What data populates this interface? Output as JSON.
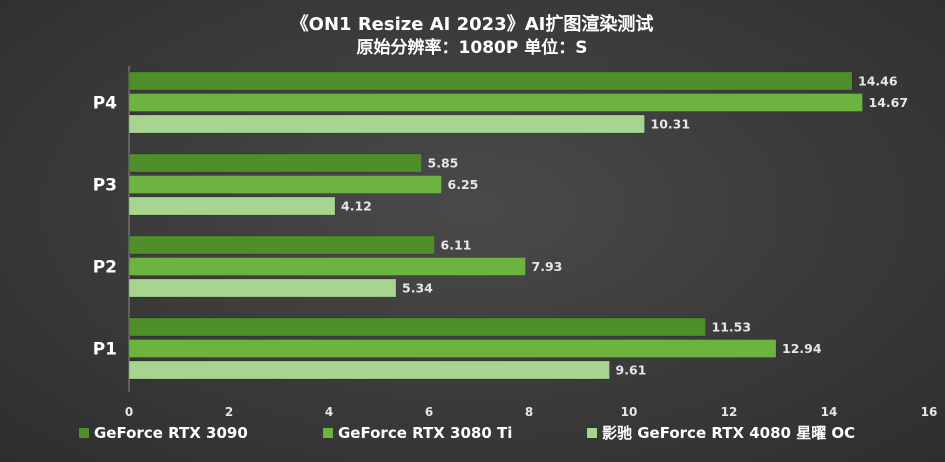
{
  "chart_data": {
    "type": "bar",
    "orientation": "horizontal",
    "title": "《ON1 Resize AI 2023》AI扩图渲染测试",
    "subtitle": "原始分辨率：1080P 单位：S",
    "categories": [
      "P4",
      "P3",
      "P2",
      "P1"
    ],
    "series": [
      {
        "name": "GeForce RTX 3090",
        "color": "#4e8f2c",
        "values": [
          14.46,
          5.85,
          6.11,
          11.53
        ]
      },
      {
        "name": "GeForce RTX 3080 Ti",
        "color": "#6cb33f",
        "values": [
          14.67,
          6.25,
          7.93,
          12.94
        ]
      },
      {
        "name": "影驰 GeForce RTX 4080 星曜 OC",
        "color": "#a7d48e",
        "values": [
          10.31,
          4.12,
          5.34,
          9.61
        ]
      }
    ],
    "value_labels": [
      [
        "14.46",
        "5.85",
        "6.11",
        "11.53"
      ],
      [
        "14.67",
        "6.25",
        "7.93",
        "12.94"
      ],
      [
        "10.31",
        "4.12",
        "5.34",
        "9.61"
      ]
    ],
    "xlim": [
      0,
      16
    ],
    "xticks": [
      "0",
      "2",
      "4",
      "6",
      "8",
      "10",
      "12",
      "14",
      "16"
    ],
    "xlabel": "",
    "ylabel": "",
    "grid": false,
    "legend_position": "bottom"
  }
}
